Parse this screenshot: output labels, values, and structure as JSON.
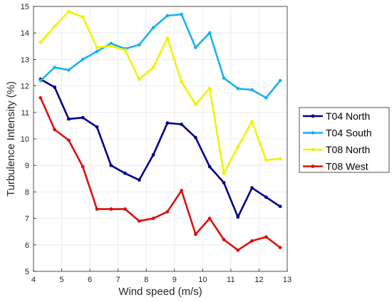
{
  "chart_data": {
    "type": "line",
    "title": "",
    "xlabel": "Wind speed (m/s)",
    "ylabel": "Turbulence Intensity (%)",
    "xlim": [
      4,
      13
    ],
    "ylim": [
      5,
      15
    ],
    "xticks": [
      4,
      5,
      6,
      7,
      8,
      9,
      10,
      11,
      12,
      13
    ],
    "yticks": [
      5,
      6,
      7,
      8,
      9,
      10,
      11,
      12,
      13,
      14,
      15
    ],
    "grid": true,
    "legend_position": "outside-right",
    "x": [
      4.25,
      4.75,
      5.25,
      5.75,
      6.25,
      6.75,
      7.25,
      7.75,
      8.25,
      8.75,
      9.25,
      9.75,
      10.25,
      10.75,
      11.25,
      11.75,
      12.25,
      12.75
    ],
    "series": [
      {
        "name": "T04 North",
        "color": "#00008b",
        "values": [
          12.25,
          11.95,
          10.75,
          10.8,
          10.45,
          9.0,
          8.7,
          8.45,
          9.4,
          10.6,
          10.55,
          10.05,
          8.95,
          8.35,
          7.05,
          8.15,
          7.8,
          7.45
        ]
      },
      {
        "name": "T04 South",
        "color": "#19b2ef",
        "values": [
          12.2,
          12.7,
          12.6,
          13.0,
          13.3,
          13.6,
          13.4,
          13.55,
          14.2,
          14.65,
          14.7,
          13.45,
          14.0,
          12.3,
          11.9,
          11.85,
          11.55,
          12.2
        ]
      },
      {
        "name": "T08 North",
        "color": "#f2f200",
        "values": [
          13.65,
          14.25,
          14.8,
          14.6,
          13.45,
          13.5,
          13.35,
          12.25,
          12.7,
          13.8,
          12.15,
          11.3,
          11.9,
          8.7,
          9.7,
          10.65,
          9.2,
          9.25
        ]
      },
      {
        "name": "T08 West",
        "color": "#dd0f0f",
        "values": [
          11.55,
          10.35,
          9.95,
          8.95,
          7.35,
          7.35,
          7.35,
          6.9,
          7.0,
          7.25,
          8.05,
          6.4,
          7.0,
          6.2,
          5.8,
          6.15,
          6.3,
          5.9
        ]
      }
    ]
  }
}
